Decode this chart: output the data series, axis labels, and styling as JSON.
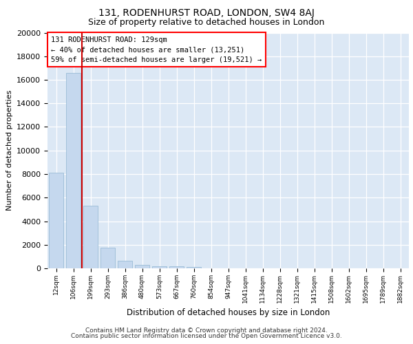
{
  "title_line1": "131, RODENHURST ROAD, LONDON, SW4 8AJ",
  "title_line2": "Size of property relative to detached houses in London",
  "xlabel": "Distribution of detached houses by size in London",
  "ylabel": "Number of detached properties",
  "categories": [
    "12sqm",
    "106sqm",
    "199sqm",
    "293sqm",
    "386sqm",
    "480sqm",
    "573sqm",
    "667sqm",
    "760sqm",
    "854sqm",
    "947sqm",
    "1041sqm",
    "1134sqm",
    "1228sqm",
    "1321sqm",
    "1415sqm",
    "1508sqm",
    "1602sqm",
    "1695sqm",
    "1789sqm",
    "1882sqm"
  ],
  "values": [
    8100,
    16600,
    5300,
    1750,
    650,
    320,
    200,
    160,
    130,
    0,
    0,
    0,
    0,
    0,
    0,
    0,
    0,
    0,
    0,
    0,
    0
  ],
  "bar_color": "#c5d8ee",
  "bar_edge_color": "#9abcd6",
  "annotation_title": "131 RODENHURST ROAD: 129sqm",
  "annotation_line2": "← 40% of detached houses are smaller (13,251)",
  "annotation_line3": "59% of semi-detached houses are larger (19,521) →",
  "ylim_max": 20000,
  "yticks": [
    0,
    2000,
    4000,
    6000,
    8000,
    10000,
    12000,
    14000,
    16000,
    18000,
    20000
  ],
  "plot_bg_color": "#dce8f5",
  "grid_color": "#ffffff",
  "red_line_color": "#cc0000",
  "footer_line1": "Contains HM Land Registry data © Crown copyright and database right 2024.",
  "footer_line2": "Contains public sector information licensed under the Open Government Licence v3.0."
}
